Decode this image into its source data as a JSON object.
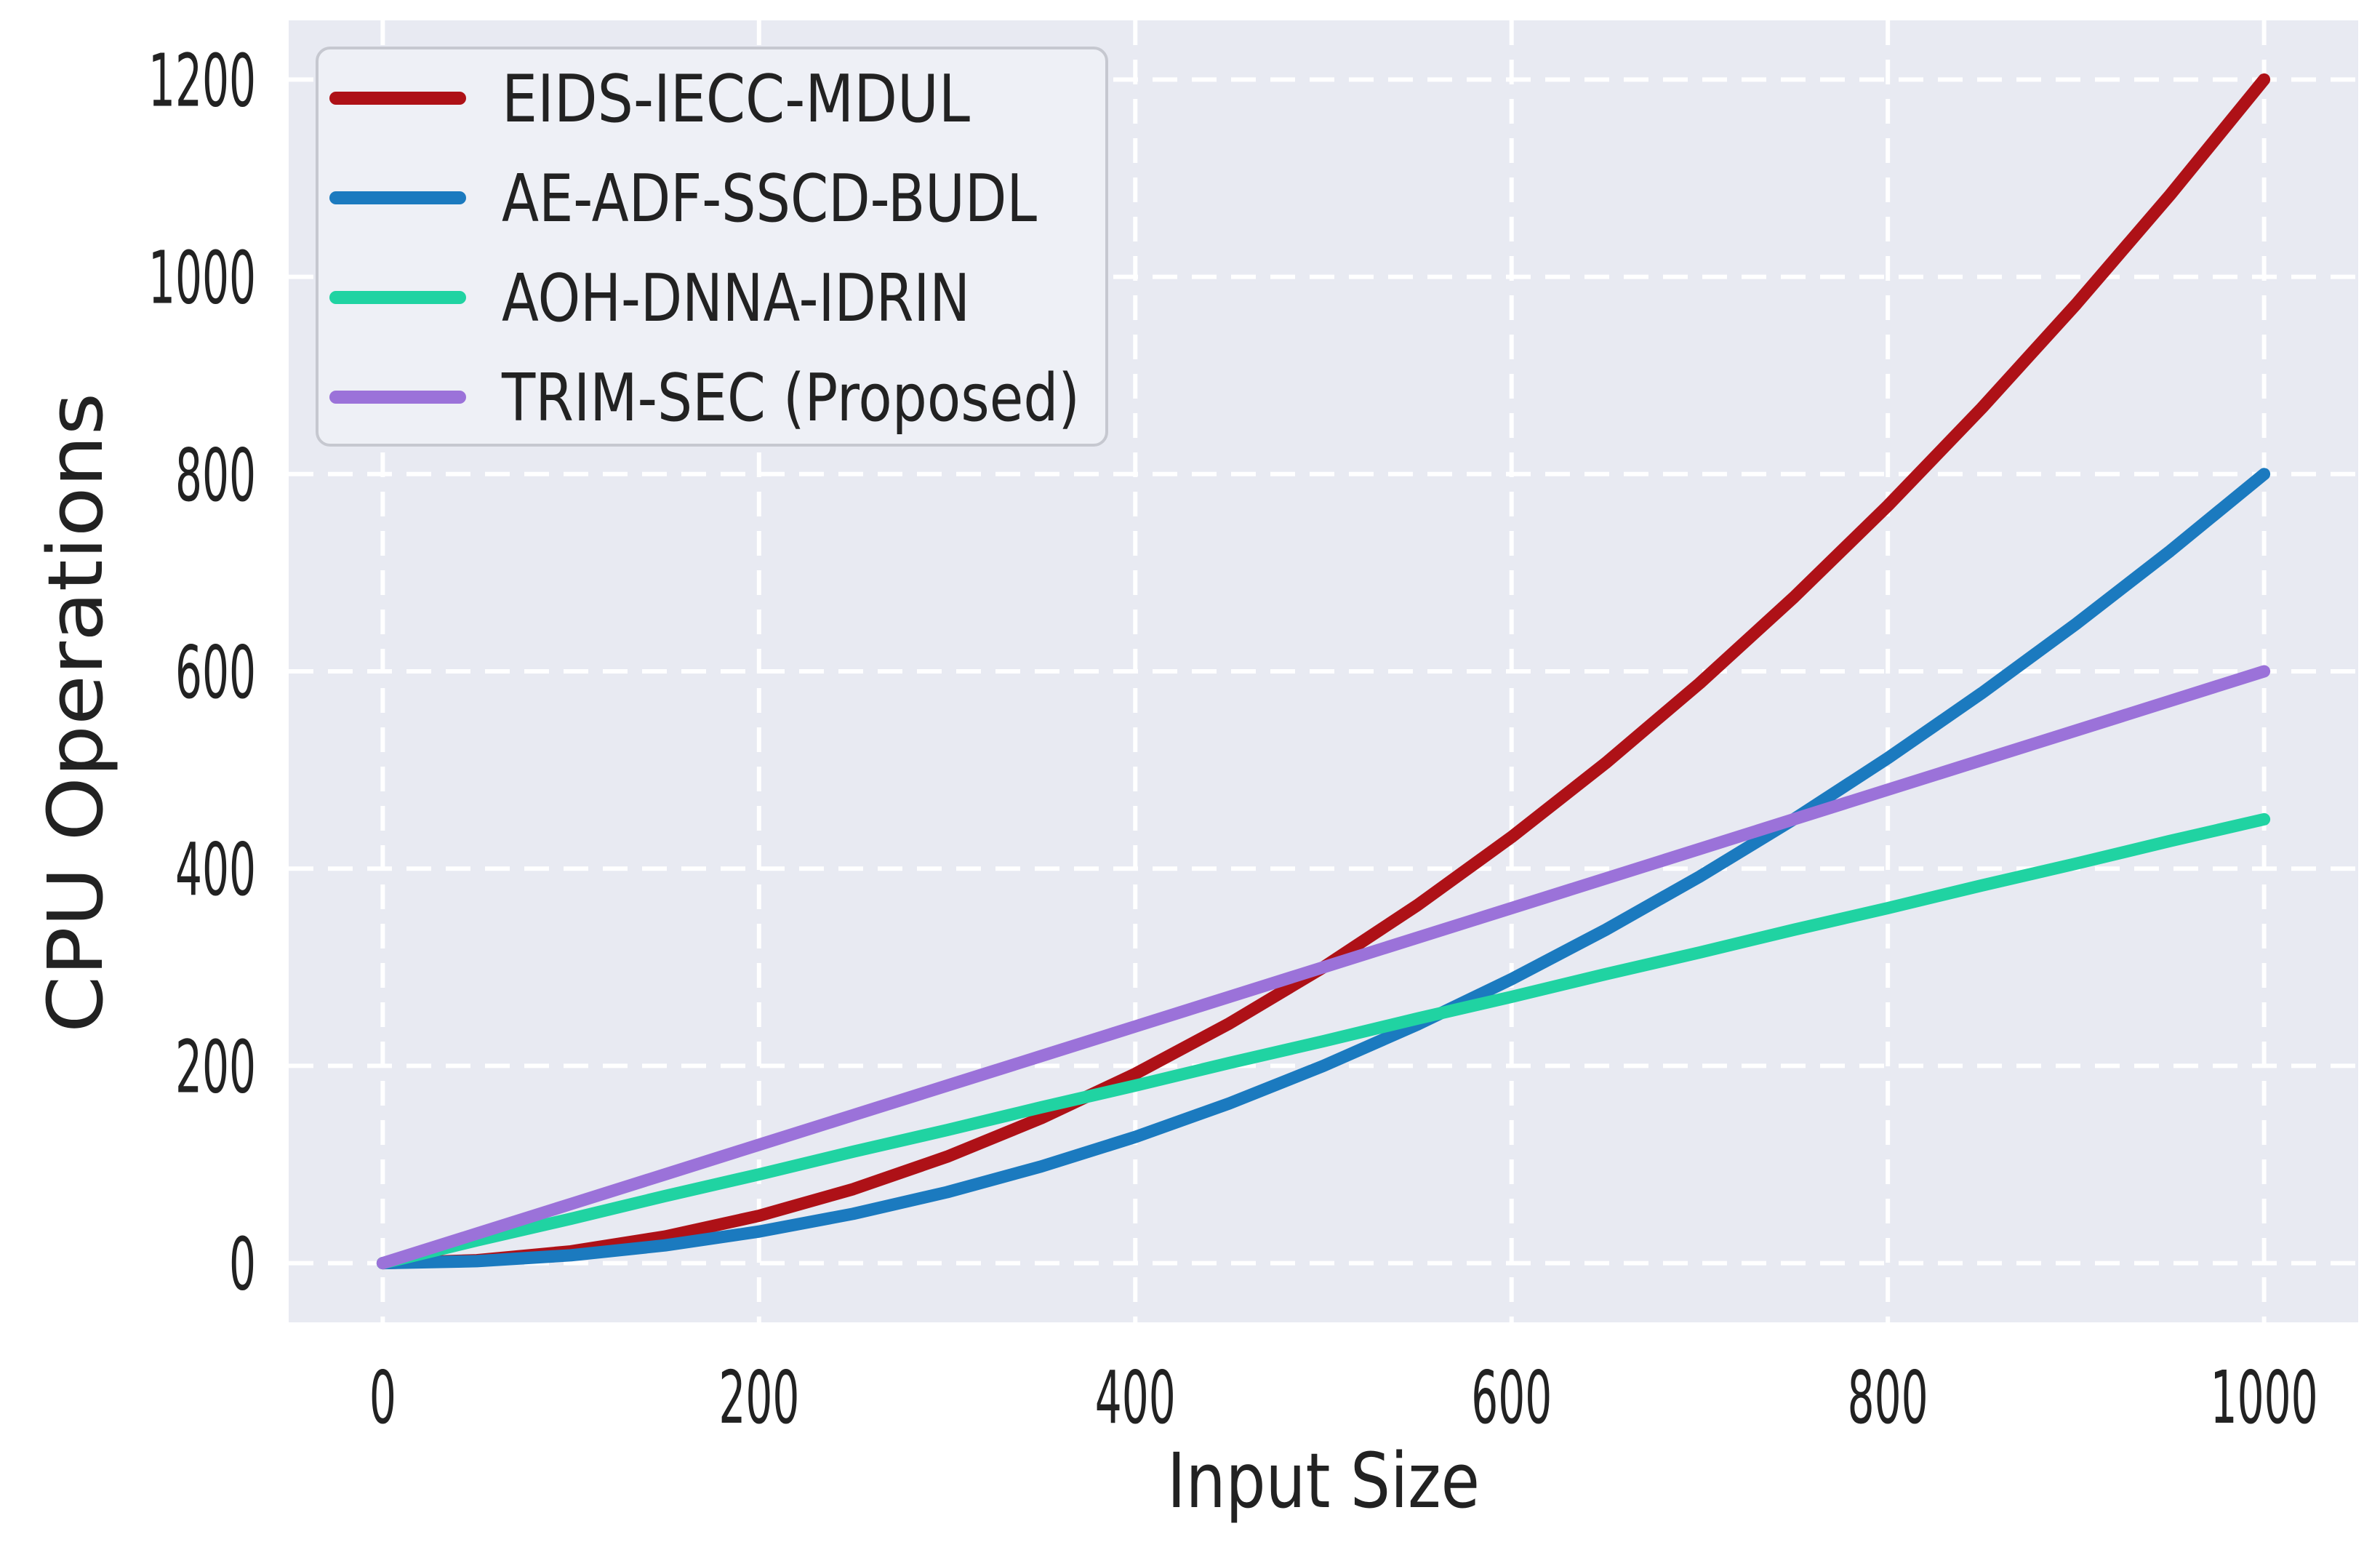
{
  "figure": {
    "plot_bg_color": "#e8eaf2",
    "outer_bg_color": "#ffffff",
    "grid_color": "#ffffff",
    "grid_style": "dashed",
    "text_color": "#222222",
    "legend_border_color": "#c6c8d0",
    "legend_bg_color": "#eef0f6"
  },
  "chart_data": {
    "type": "line",
    "title": "",
    "xlabel": "Input Size",
    "ylabel": "CPU Operations",
    "x": [
      0,
      50,
      100,
      150,
      200,
      250,
      300,
      350,
      400,
      450,
      500,
      550,
      600,
      650,
      700,
      750,
      800,
      850,
      900,
      950,
      1000
    ],
    "series": [
      {
        "name": "EIDS-IECC-MDUL",
        "color": "#ae1117",
        "shape": "quadratic",
        "values": [
          0,
          3,
          12,
          27,
          48,
          75,
          108,
          147,
          192,
          243,
          300,
          363,
          432,
          507,
          588,
          675,
          768,
          867,
          972,
          1083,
          1200
        ]
      },
      {
        "name": "AE-ADF-SSCD-BUDL",
        "color": "#1b7abf",
        "shape": "quadratic",
        "values": [
          0,
          2,
          8,
          18,
          32,
          50,
          72,
          98,
          128,
          162,
          200,
          242,
          288,
          338,
          392,
          450,
          512,
          578,
          648,
          722,
          800
        ]
      },
      {
        "name": "AOH-DNNA-IDRIN",
        "color": "#20d3a2",
        "shape": "linear",
        "values": [
          0,
          23,
          45,
          68,
          90,
          113,
          135,
          158,
          180,
          203,
          225,
          248,
          270,
          293,
          315,
          338,
          360,
          383,
          405,
          428,
          450
        ]
      },
      {
        "name": "TRIM-SEC (Proposed)",
        "color": "#9b72d9",
        "shape": "linear",
        "values": [
          0,
          30,
          60,
          90,
          120,
          150,
          180,
          210,
          240,
          270,
          300,
          330,
          360,
          390,
          420,
          450,
          480,
          510,
          540,
          570,
          600
        ]
      }
    ],
    "x_ticks": [
      "0",
      "200",
      "400",
      "600",
      "800",
      "1000"
    ],
    "x_tick_values": [
      0,
      200,
      400,
      600,
      800,
      1000
    ],
    "y_ticks": [
      "0",
      "200",
      "400",
      "600",
      "800",
      "1000",
      "1200"
    ],
    "y_tick_values": [
      0,
      200,
      400,
      600,
      800,
      1000,
      1200
    ],
    "xlim": [
      -50,
      1050
    ],
    "ylim": [
      -60,
      1260
    ],
    "grid": true,
    "legend_position": "upper-left"
  }
}
